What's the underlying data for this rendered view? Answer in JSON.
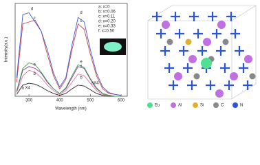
{
  "chart_data": {
    "type": "line",
    "x_label": "Wavelength (nm)",
    "y_label": "Intensity(a.u.)",
    "x": [
      260,
      280,
      300,
      320,
      340,
      360,
      380,
      400,
      420,
      440,
      460,
      480,
      500,
      520,
      540,
      560,
      580,
      600
    ],
    "xlim": [
      255,
      620
    ],
    "xticks": [
      300,
      400,
      500,
      600
    ],
    "ylim": [
      0,
      100
    ],
    "series": [
      {
        "name": "a: x=0",
        "color": "#222222",
        "values": [
          2,
          12,
          14,
          13,
          10,
          6,
          3,
          1,
          3,
          8,
          12,
          11,
          7,
          3,
          1,
          0,
          0,
          0
        ]
      },
      {
        "name": "b: x=0.06",
        "color": "#e070a0",
        "values": [
          4,
          22,
          28,
          26,
          20,
          12,
          6,
          2,
          6,
          15,
          24,
          22,
          14,
          6,
          2,
          1,
          0,
          0
        ]
      },
      {
        "name": "c: x=0.11",
        "color": "#d04040",
        "values": [
          15,
          78,
          80,
          82,
          70,
          45,
          22,
          8,
          18,
          50,
          78,
          72,
          45,
          22,
          8,
          3,
          2,
          1
        ]
      },
      {
        "name": "d: x=0.20",
        "color": "#3a5bd9",
        "values": [
          20,
          88,
          90,
          80,
          70,
          50,
          25,
          10,
          20,
          55,
          85,
          80,
          50,
          25,
          10,
          4,
          2,
          1
        ]
      },
      {
        "name": "e: x=0.33",
        "color": "#8a3aa0",
        "values": [
          5,
          28,
          32,
          30,
          25,
          15,
          8,
          3,
          8,
          20,
          32,
          30,
          18,
          8,
          3,
          1,
          0,
          0
        ]
      },
      {
        "name": "f: x=0.50",
        "color": "#3aa040",
        "values": [
          6,
          30,
          36,
          34,
          26,
          16,
          8,
          3,
          9,
          22,
          34,
          31,
          19,
          9,
          3,
          1,
          0,
          0
        ]
      }
    ],
    "annotations": [
      {
        "text": "d",
        "x": 310,
        "y": 94
      },
      {
        "text": "c",
        "x": 318,
        "y": 84
      },
      {
        "text": "e",
        "x": 318,
        "y": 34
      },
      {
        "text": "b",
        "x": 318,
        "y": 24
      },
      {
        "text": "a X4",
        "x": 290,
        "y": 9
      },
      {
        "text": "d",
        "x": 470,
        "y": 90
      },
      {
        "text": "c",
        "x": 470,
        "y": 81
      },
      {
        "text": "e",
        "x": 470,
        "y": 37
      },
      {
        "text": "f",
        "x": 470,
        "y": 32
      },
      {
        "text": "b",
        "x": 470,
        "y": 20
      },
      {
        "text": "aX4",
        "x": 515,
        "y": 14
      }
    ]
  },
  "structure_legend": [
    "Eu",
    "Al",
    "Si",
    "C",
    "N"
  ]
}
